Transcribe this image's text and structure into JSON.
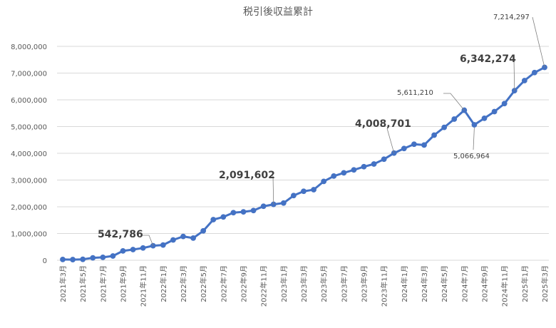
{
  "chart_data": {
    "type": "line",
    "title": "税引後収益累計",
    "xlabel": "",
    "ylabel": "",
    "ylim": [
      0,
      8000000
    ],
    "yticks": [
      0,
      1000000,
      2000000,
      3000000,
      4000000,
      5000000,
      6000000,
      7000000,
      8000000
    ],
    "ytick_labels": [
      "0",
      "1,000,000",
      "2,000,000",
      "3,000,000",
      "4,000,000",
      "5,000,000",
      "6,000,000",
      "7,000,000",
      "8,000,000"
    ],
    "grid": true,
    "legend": "none",
    "line_color": "#4472c4",
    "x_labels": [
      "2021年3月",
      "2021年5月",
      "2021年7月",
      "2021年9月",
      "2021年11月",
      "2022年1月",
      "2022年3月",
      "2022年5月",
      "2022年7月",
      "2022年9月",
      "2022年11月",
      "2023年1月",
      "2023年3月",
      "2023年5月",
      "2023年7月",
      "2023年9月",
      "2023年11月",
      "2024年1月",
      "2024年3月",
      "2024年5月",
      "2024年7月",
      "2024年9月",
      "2024年11月",
      "2025年1月",
      "2025年3月"
    ],
    "values": [
      30000,
      25000,
      35000,
      90000,
      110000,
      160000,
      350000,
      400000,
      460000,
      542786,
      570000,
      760000,
      890000,
      830000,
      1100000,
      1520000,
      1620000,
      1780000,
      1810000,
      1860000,
      2020000,
      2091602,
      2140000,
      2420000,
      2580000,
      2640000,
      2950000,
      3150000,
      3270000,
      3380000,
      3500000,
      3600000,
      3780000,
      4008701,
      4180000,
      4340000,
      4310000,
      4680000,
      4970000,
      5280000,
      5611210,
      5066964,
      5310000,
      5560000,
      5860000,
      6342274,
      6720000,
      7020000,
      7214297
    ],
    "annotations": [
      {
        "index": 9,
        "label": "542,786",
        "style": "big"
      },
      {
        "index": 21,
        "label": "2,091,602",
        "style": "big"
      },
      {
        "index": 33,
        "label": "4,008,701",
        "style": "big"
      },
      {
        "index": 40,
        "label": "5,611,210",
        "style": "small"
      },
      {
        "index": 41,
        "label": "5,066,964",
        "style": "small"
      },
      {
        "index": 45,
        "label": "6,342,274",
        "style": "big"
      },
      {
        "index": 48,
        "label": "7,214,297",
        "style": "small"
      }
    ]
  }
}
